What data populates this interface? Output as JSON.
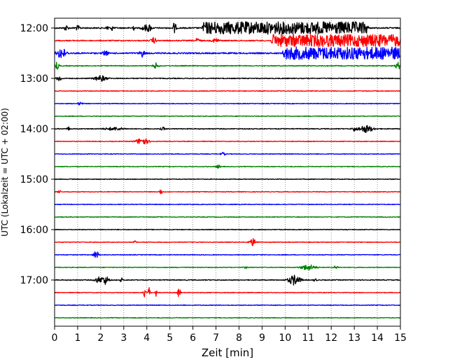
{
  "chart_data": {
    "type": "line",
    "xlabel": "Zeit  [min]",
    "ylabel": "UTC (Lokalzeit = UTC + 02:00)",
    "xlim": [
      0,
      15
    ],
    "x_ticks": [
      "0",
      "1",
      "2",
      "3",
      "4",
      "5",
      "6",
      "7",
      "8",
      "9",
      "10",
      "11",
      "12",
      "13",
      "14",
      "15"
    ],
    "y_tick_labels": [
      "12:00",
      "13:00",
      "14:00",
      "15:00",
      "16:00",
      "17:00"
    ],
    "grid": "vertical dotted",
    "trace_interval_minutes": 15,
    "color_cycle": [
      "#000000",
      "#ff0000",
      "#0000ff",
      "#008000"
    ],
    "series": [
      {
        "time": "12:00",
        "color": "#000000",
        "noise": 0.9,
        "events": [
          {
            "x": 0.5,
            "amp": 4,
            "w": 0.08
          },
          {
            "x": 1.0,
            "amp": 3,
            "w": 0.1
          },
          {
            "x": 2.3,
            "amp": 5,
            "w": 0.05
          },
          {
            "x": 2.5,
            "amp": 5,
            "w": 0.04
          },
          {
            "x": 3.4,
            "amp": 6,
            "w": 0.04
          },
          {
            "x": 3.9,
            "amp": 4,
            "w": 0.12
          },
          {
            "x": 4.1,
            "amp": 5,
            "w": 0.1
          },
          {
            "x": 5.2,
            "amp": 9,
            "w": 0.06
          }
        ],
        "block": [
          6.4,
          13.6,
          8
        ]
      },
      {
        "time": "12:15",
        "color": "#ff0000",
        "noise": 0.8,
        "events": [
          {
            "x": 4.3,
            "amp": 4,
            "w": 0.1
          },
          {
            "x": 6.2,
            "amp": 3,
            "w": 0.1
          },
          {
            "x": 7.0,
            "amp": 3,
            "w": 0.15
          }
        ],
        "block": [
          9.4,
          15,
          8
        ]
      },
      {
        "time": "12:30",
        "color": "#0000ff",
        "noise": 1.0,
        "events": [
          {
            "x": 0.3,
            "amp": 8,
            "w": 0.18
          },
          {
            "x": 2.2,
            "amp": 4,
            "w": 0.1
          },
          {
            "x": 3.8,
            "amp": 5,
            "w": 0.1
          }
        ],
        "block": [
          9.9,
          15,
          8
        ]
      },
      {
        "time": "12:45",
        "color": "#008000",
        "noise": 0.6,
        "events": [
          {
            "x": 0.1,
            "amp": 5,
            "w": 0.08
          },
          {
            "x": 4.4,
            "amp": 4,
            "w": 0.1
          },
          {
            "x": 14.9,
            "amp": 5,
            "w": 0.1
          }
        ]
      },
      {
        "time": "13:00",
        "color": "#000000",
        "noise": 0.6,
        "events": [
          {
            "x": 0.2,
            "amp": 4,
            "w": 0.1
          },
          {
            "x": 2.0,
            "amp": 4,
            "w": 0.25
          }
        ]
      },
      {
        "time": "13:15",
        "color": "#ff0000",
        "noise": 0.5,
        "events": []
      },
      {
        "time": "13:30",
        "color": "#0000ff",
        "noise": 0.5,
        "events": [
          {
            "x": 1.1,
            "amp": 2,
            "w": 0.1
          }
        ]
      },
      {
        "time": "13:45",
        "color": "#008000",
        "noise": 0.5,
        "events": []
      },
      {
        "time": "14:00",
        "color": "#000000",
        "noise": 0.6,
        "events": [
          {
            "x": 0.6,
            "amp": 3,
            "w": 0.05
          },
          {
            "x": 2.6,
            "amp": 2,
            "w": 0.4
          },
          {
            "x": 4.7,
            "amp": 2,
            "w": 0.1
          },
          {
            "x": 13.0,
            "amp": 3,
            "w": 0.08
          },
          {
            "x": 13.5,
            "amp": 5,
            "w": 0.3
          }
        ]
      },
      {
        "time": "14:15",
        "color": "#ff0000",
        "noise": 0.5,
        "events": [
          {
            "x": 3.8,
            "amp": 5,
            "w": 0.25
          }
        ]
      },
      {
        "time": "14:30",
        "color": "#0000ff",
        "noise": 0.5,
        "events": [
          {
            "x": 7.3,
            "amp": 2,
            "w": 0.1
          }
        ]
      },
      {
        "time": "14:45",
        "color": "#008000",
        "noise": 0.5,
        "events": [
          {
            "x": 7.1,
            "amp": 2,
            "w": 0.1
          }
        ]
      },
      {
        "time": "15:00",
        "color": "#000000",
        "noise": 0.5,
        "events": []
      },
      {
        "time": "15:15",
        "color": "#ff0000",
        "noise": 0.5,
        "events": [
          {
            "x": 0.2,
            "amp": 2,
            "w": 0.08
          },
          {
            "x": 4.6,
            "amp": 4,
            "w": 0.06
          }
        ]
      },
      {
        "time": "15:30",
        "color": "#0000ff",
        "noise": 0.5,
        "events": []
      },
      {
        "time": "15:45",
        "color": "#008000",
        "noise": 0.5,
        "events": []
      },
      {
        "time": "16:00",
        "color": "#000000",
        "noise": 0.5,
        "events": []
      },
      {
        "time": "16:15",
        "color": "#ff0000",
        "noise": 0.5,
        "events": [
          {
            "x": 3.5,
            "amp": 2,
            "w": 0.06
          },
          {
            "x": 8.6,
            "amp": 5,
            "w": 0.15
          }
        ]
      },
      {
        "time": "16:30",
        "color": "#0000ff",
        "noise": 0.5,
        "events": [
          {
            "x": 1.8,
            "amp": 6,
            "w": 0.1
          }
        ]
      },
      {
        "time": "16:45",
        "color": "#008000",
        "noise": 0.5,
        "events": [
          {
            "x": 8.3,
            "amp": 2,
            "w": 0.06
          },
          {
            "x": 11.0,
            "amp": 4,
            "w": 0.3
          },
          {
            "x": 12.2,
            "amp": 2,
            "w": 0.1
          }
        ]
      },
      {
        "time": "17:00",
        "color": "#000000",
        "noise": 0.6,
        "events": [
          {
            "x": 1.9,
            "amp": 4,
            "w": 0.15
          },
          {
            "x": 2.2,
            "amp": 6,
            "w": 0.15
          },
          {
            "x": 2.9,
            "amp": 3,
            "w": 0.05
          },
          {
            "x": 10.4,
            "amp": 7,
            "w": 0.25
          },
          {
            "x": 11.3,
            "amp": 3,
            "w": 0.05
          }
        ]
      },
      {
        "time": "17:15",
        "color": "#ff0000",
        "noise": 0.5,
        "events": [
          {
            "x": 3.9,
            "amp": 8,
            "w": 0.05
          },
          {
            "x": 4.1,
            "amp": 7,
            "w": 0.05
          },
          {
            "x": 4.4,
            "amp": 9,
            "w": 0.03
          },
          {
            "x": 5.4,
            "amp": 10,
            "w": 0.05
          }
        ]
      },
      {
        "time": "17:30",
        "color": "#0000ff",
        "noise": 0.5,
        "events": []
      },
      {
        "time": "17:45",
        "color": "#008000",
        "noise": 0.5,
        "events": []
      }
    ]
  }
}
